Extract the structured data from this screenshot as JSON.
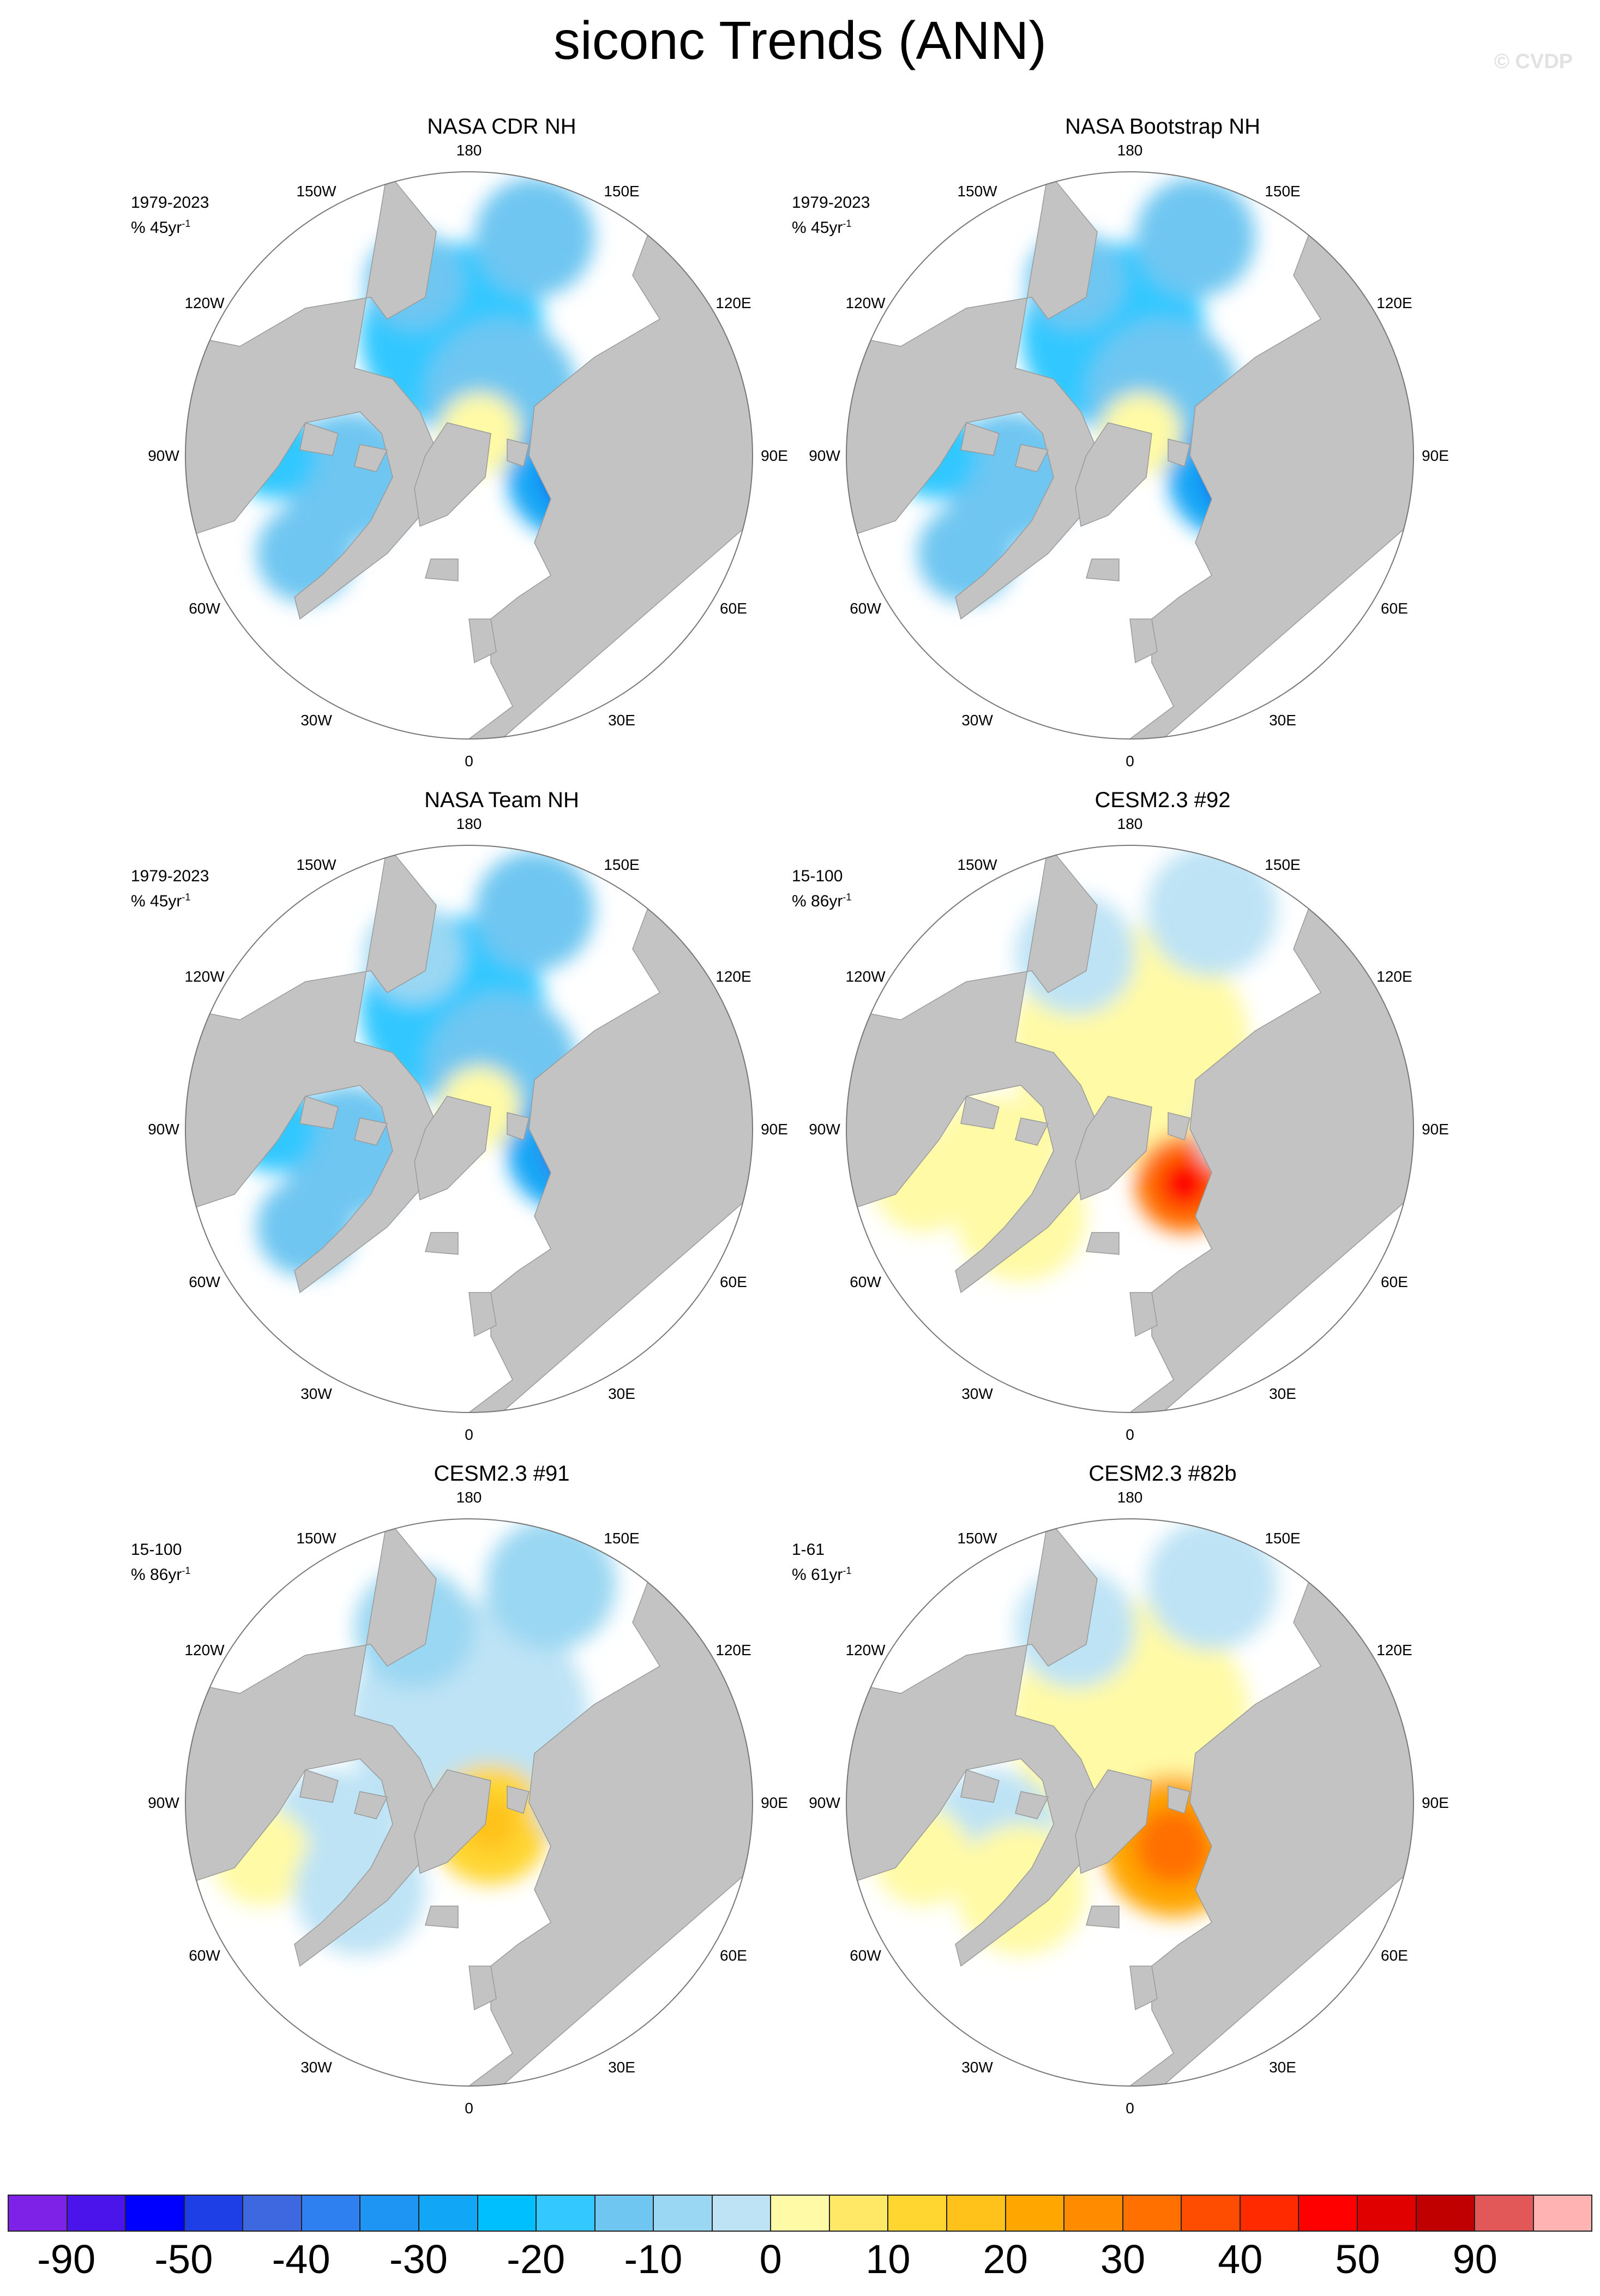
{
  "title": "siconc Trends (ANN)",
  "watermark": "© CVDP",
  "panels": [
    {
      "title": "NASA CDR NH",
      "line1": "1979-2023",
      "line2": "% 45yr",
      "pattern": "obs1"
    },
    {
      "title": "NASA Bootstrap NH",
      "line1": "1979-2023",
      "line2": "% 45yr",
      "pattern": "obs2"
    },
    {
      "title": "NASA Team NH",
      "line1": "1979-2023",
      "line2": "% 45yr",
      "pattern": "obs3"
    },
    {
      "title": "CESM2.3 #92",
      "line1": "15-100",
      "line2": "% 86yr",
      "pattern": "m92"
    },
    {
      "title": "CESM2.3 #91",
      "line1": "15-100",
      "line2": "% 86yr",
      "pattern": "m91"
    },
    {
      "title": "CESM2.3 #82b",
      "line1": "1-61",
      "line2": "% 61yr",
      "pattern": "m82"
    }
  ],
  "lon_labels": [
    "180",
    "150E",
    "120E",
    "90E",
    "60E",
    "30E",
    "0",
    "30W",
    "60W",
    "90W",
    "120W",
    "150W"
  ],
  "trend_unit_exponent": "-1",
  "colorbar": {
    "colors": [
      "#7f22e8",
      "#4b14ea",
      "#0000ff",
      "#1e3fe6",
      "#3e68e0",
      "#2e7fef",
      "#1e95f2",
      "#12a6f6",
      "#00bfff",
      "#33c8ff",
      "#6ec6f1",
      "#9ad7f2",
      "#bde3f5",
      "#fffaa6",
      "#ffe865",
      "#ffd630",
      "#ffc21a",
      "#ffa600",
      "#ff8c00",
      "#ff7000",
      "#ff4d00",
      "#ff2a00",
      "#ff0000",
      "#e00000",
      "#c00000",
      "#e25858",
      "#ffb3b3"
    ],
    "labels": [
      "-90",
      "-50",
      "-40",
      "-30",
      "-20",
      "-10",
      "0",
      "10",
      "20",
      "30",
      "40",
      "50",
      "90"
    ]
  },
  "legend_colors": {
    "land": "#c3c3c3",
    "ocean": "#ffffff"
  }
}
